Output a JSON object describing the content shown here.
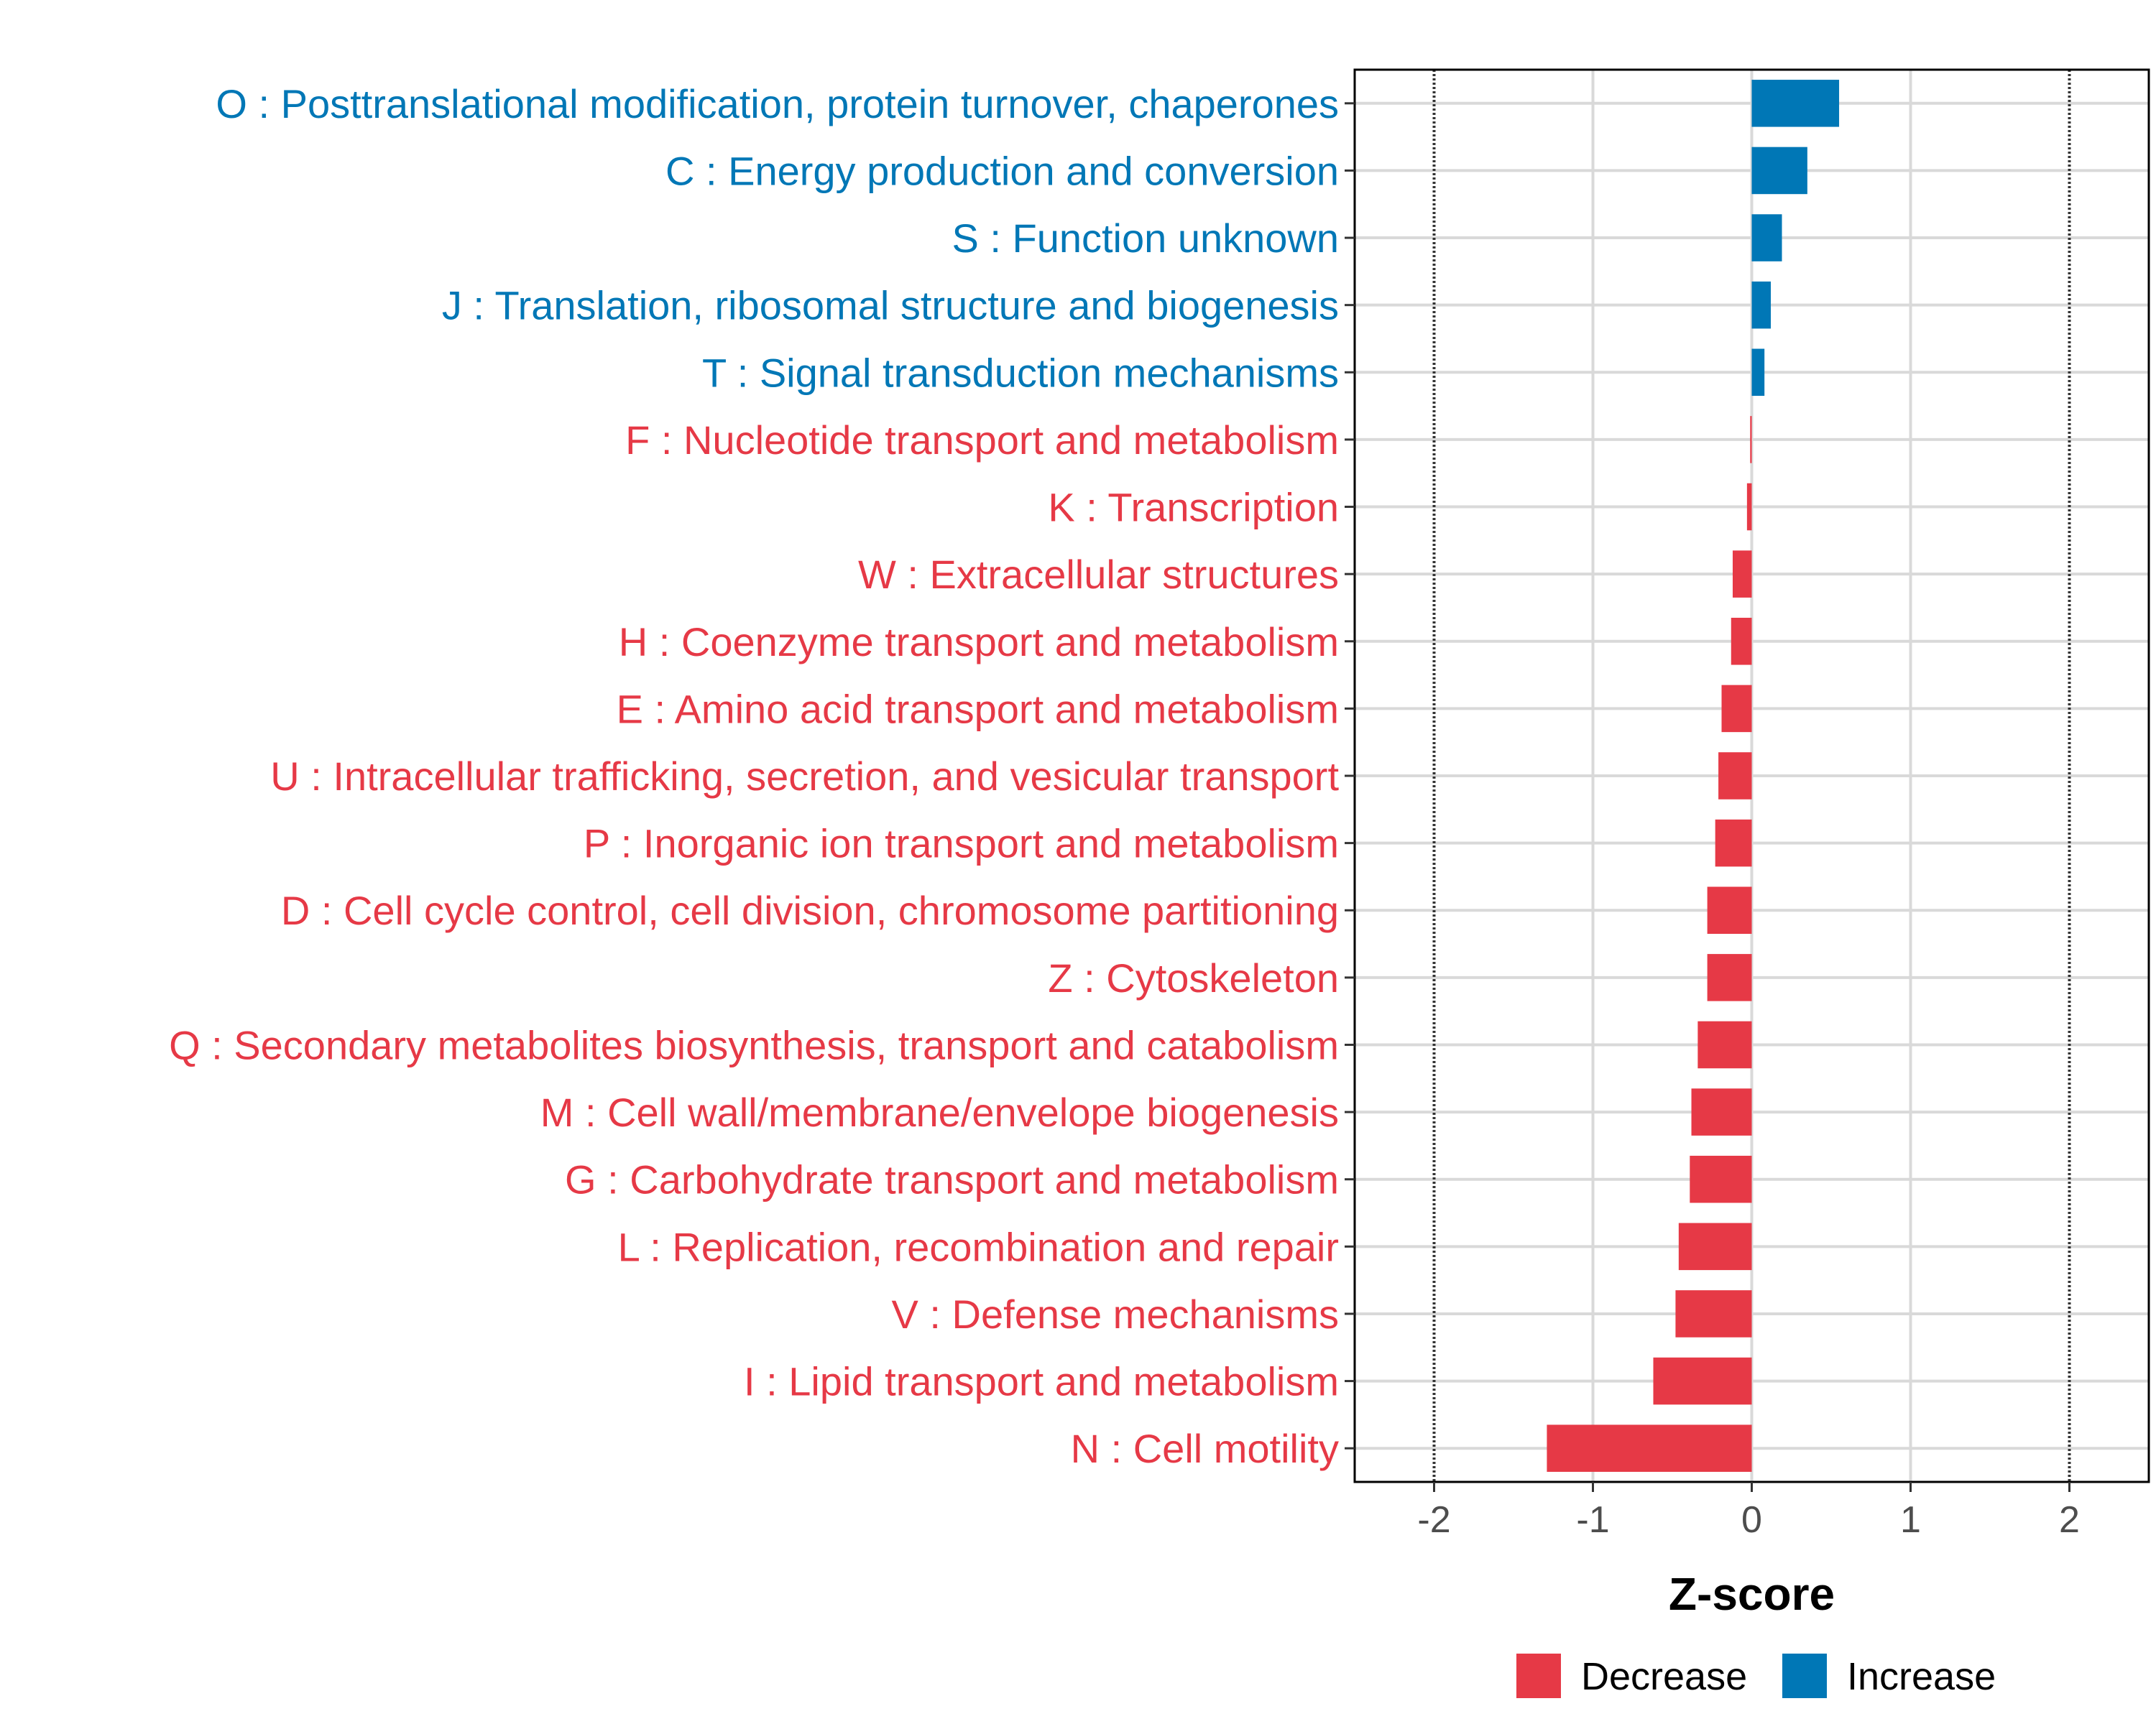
{
  "chart_data": {
    "type": "bar",
    "orientation": "horizontal",
    "title": "",
    "xlabel": "Z-score",
    "ylabel": "",
    "xlim": [
      -2.5,
      2.5
    ],
    "xticks": [
      -2,
      -1,
      0,
      1,
      2
    ],
    "xtick_labels": [
      "-2",
      "-1",
      "0",
      "1",
      "2"
    ],
    "reference_lines": [
      -2,
      2
    ],
    "grid": true,
    "legend_position": "bottom",
    "categories": [
      "O : Posttranslational modification, protein turnover, chaperones",
      "C : Energy production and conversion",
      "S : Function unknown",
      "J : Translation, ribosomal structure and biogenesis",
      "T : Signal transduction mechanisms",
      "F : Nucleotide transport and metabolism",
      "K : Transcription",
      "W : Extracellular structures",
      "H : Coenzyme transport and metabolism",
      "E : Amino acid transport and metabolism",
      "U : Intracellular trafficking, secretion, and vesicular transport",
      "P : Inorganic ion transport and metabolism",
      "D : Cell cycle control, cell division, chromosome partitioning",
      "Z : Cytoskeleton",
      "Q : Secondary metabolites biosynthesis, transport and catabolism",
      "M : Cell wall/membrane/envelope biogenesis",
      "G : Carbohydrate transport and metabolism",
      "L : Replication, recombination and repair",
      "V : Defense mechanisms",
      "I : Lipid transport and metabolism",
      "N : Cell motility"
    ],
    "values": [
      0.55,
      0.35,
      0.19,
      0.12,
      0.08,
      -0.01,
      -0.03,
      -0.12,
      -0.13,
      -0.19,
      -0.21,
      -0.23,
      -0.28,
      -0.28,
      -0.34,
      -0.38,
      -0.39,
      -0.46,
      -0.48,
      -0.62,
      -1.29
    ],
    "groups": [
      "Increase",
      "Increase",
      "Increase",
      "Increase",
      "Increase",
      "Decrease",
      "Decrease",
      "Decrease",
      "Decrease",
      "Decrease",
      "Decrease",
      "Decrease",
      "Decrease",
      "Decrease",
      "Decrease",
      "Decrease",
      "Decrease",
      "Decrease",
      "Decrease",
      "Decrease",
      "Decrease"
    ],
    "legend": [
      {
        "name": "Decrease",
        "color": "#E63946"
      },
      {
        "name": "Increase",
        "color": "#0077B6"
      }
    ]
  }
}
